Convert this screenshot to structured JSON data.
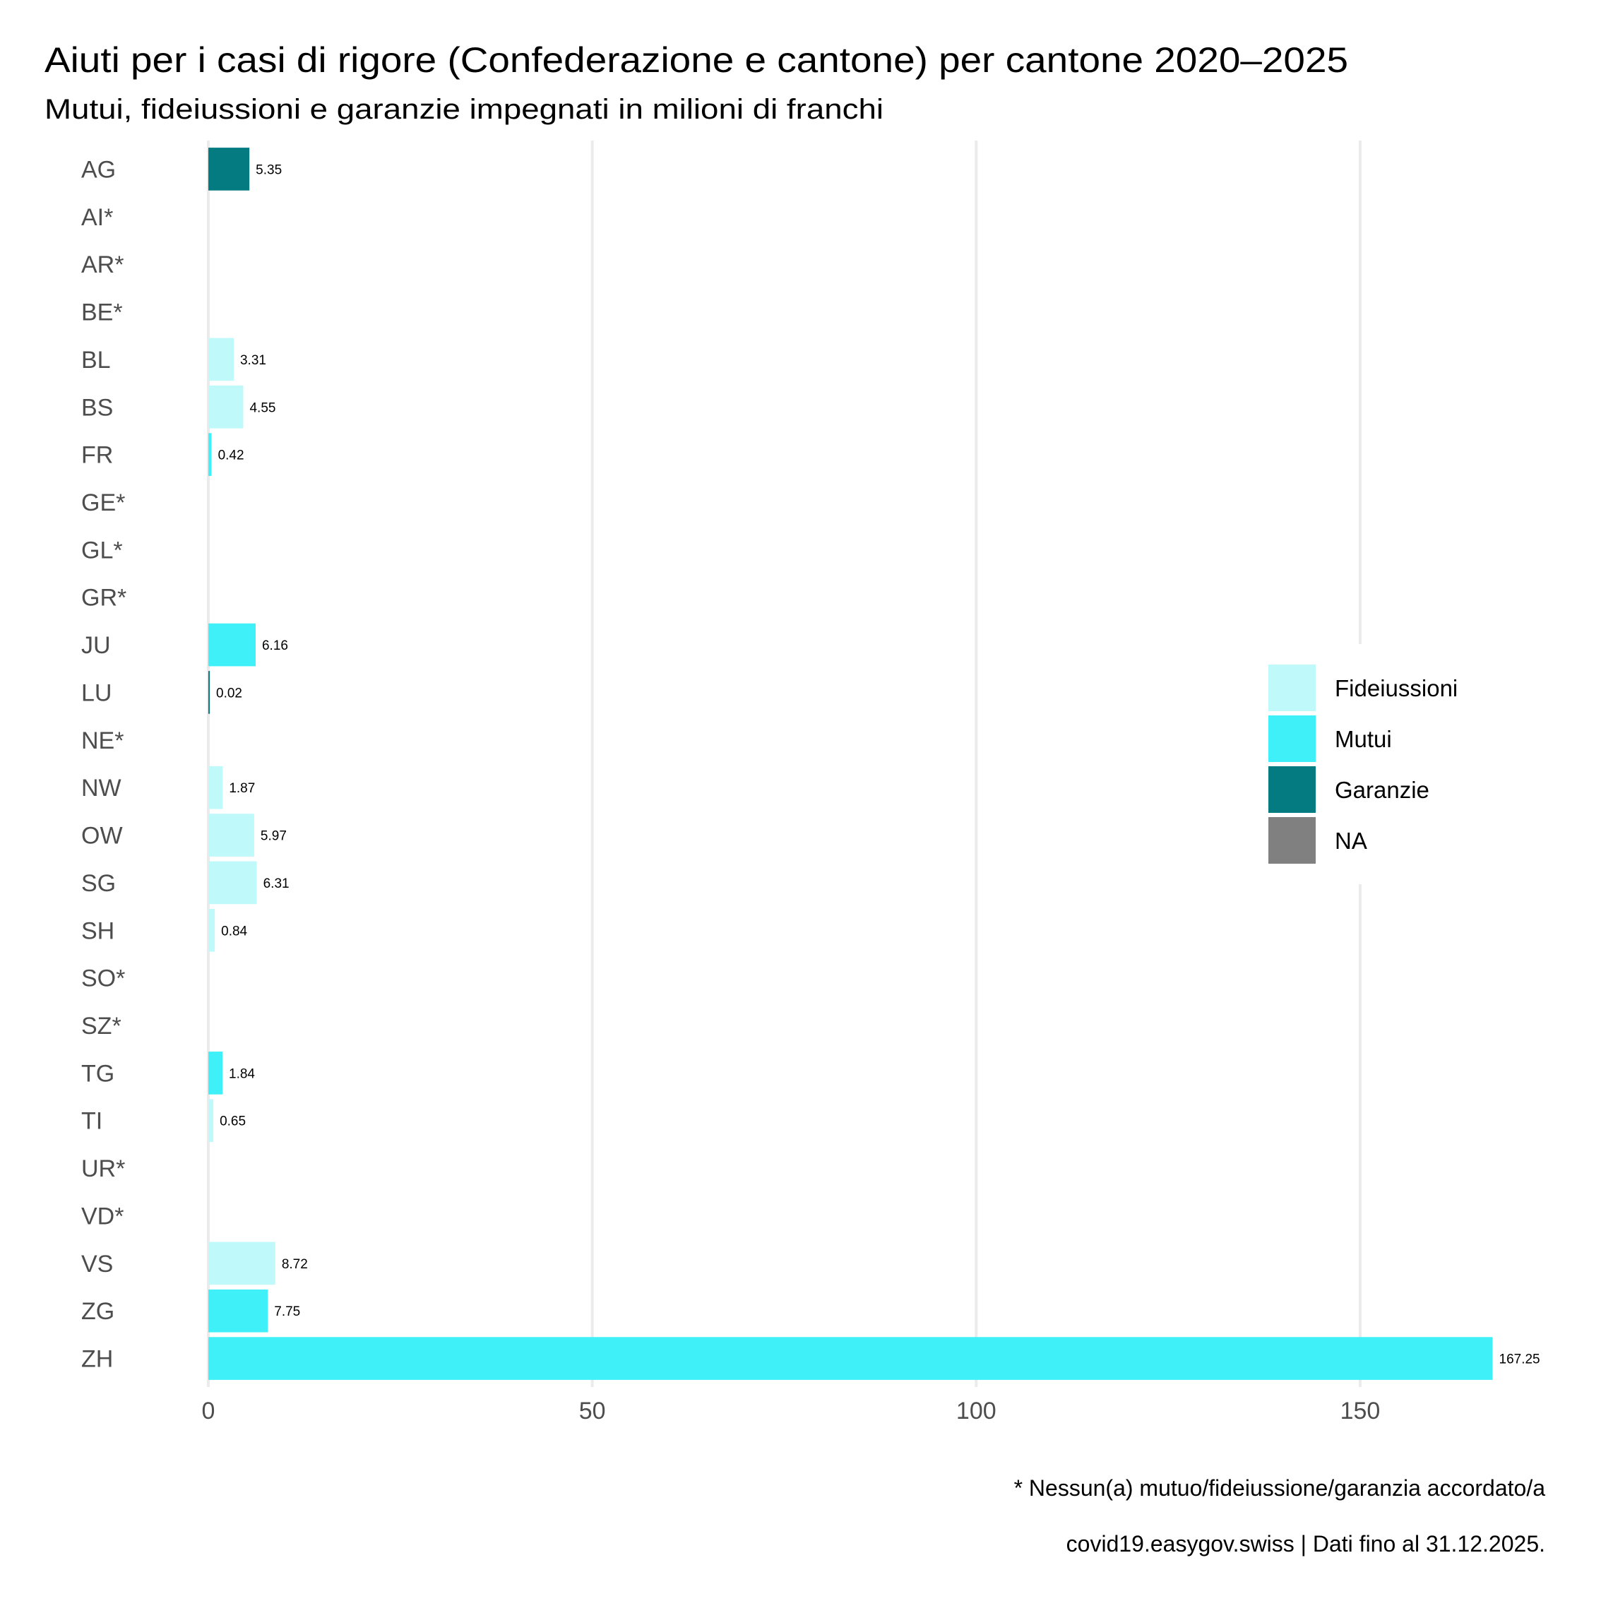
{
  "title": "Aiuti per i casi di rigore (Confederazione e cantone) per cantone 2020–2025",
  "subtitle": "Mutui, fideiussioni e garanzie impegnati in milioni di franchi",
  "caption": {
    "note": "* Nessun(a) mutuo/fideiussione/garanzia accordato/a",
    "source": "covid19.easygov.swiss | Dati fino al 31.12.2025."
  },
  "colors": {
    "Fideiussioni": "#BFF9FA",
    "Mutui": "#40F0F8",
    "Garanzie": "#037B80",
    "NA": "#808080"
  },
  "legend": {
    "items": [
      {
        "label": "Fideiussioni",
        "color": "#BFF9FA"
      },
      {
        "label": "Mutui",
        "color": "#40F0F8"
      },
      {
        "label": "Garanzie",
        "color": "#037B80"
      },
      {
        "label": "NA",
        "color": "#808080"
      }
    ],
    "position": "right"
  },
  "chart_data": {
    "type": "bar",
    "orientation": "horizontal",
    "title": "Aiuti per i casi di rigore (Confederazione e cantone) per cantone 2020–2025",
    "subtitle": "Mutui, fideiussioni e garanzie impegnati in milioni di franchi",
    "xlabel": "",
    "ylabel": "",
    "xlim": [
      0,
      170
    ],
    "xticks": [
      0,
      50,
      100,
      150
    ],
    "xtick_labels": [
      "0",
      "50",
      "100",
      "150"
    ],
    "grid": "vertical major",
    "categories": [
      "AG",
      "AI*",
      "AR*",
      "BE*",
      "BL",
      "BS",
      "FR",
      "GE*",
      "GL*",
      "GR*",
      "JU",
      "LU",
      "NE*",
      "NW",
      "OW",
      "SG",
      "SH",
      "SO*",
      "SZ*",
      "TG",
      "TI",
      "UR*",
      "VD*",
      "VS",
      "ZG",
      "ZH"
    ],
    "bars": [
      {
        "canton": "AG",
        "value": 5.35,
        "type": "Garanzie",
        "label": "5.35"
      },
      {
        "canton": "AI*",
        "value": null,
        "type": null,
        "label": null
      },
      {
        "canton": "AR*",
        "value": null,
        "type": null,
        "label": null
      },
      {
        "canton": "BE*",
        "value": null,
        "type": null,
        "label": null
      },
      {
        "canton": "BL",
        "value": 3.31,
        "type": "Fideiussioni",
        "label": "3.31"
      },
      {
        "canton": "BS",
        "value": 4.55,
        "type": "Fideiussioni",
        "label": "4.55"
      },
      {
        "canton": "FR",
        "value": 0.42,
        "type": "Mutui",
        "label": "0.42"
      },
      {
        "canton": "GE*",
        "value": null,
        "type": null,
        "label": null
      },
      {
        "canton": "GL*",
        "value": null,
        "type": null,
        "label": null
      },
      {
        "canton": "GR*",
        "value": null,
        "type": null,
        "label": null
      },
      {
        "canton": "JU",
        "value": 6.16,
        "type": "Mutui",
        "label": "6.16"
      },
      {
        "canton": "LU",
        "value": 0.02,
        "type": "Garanzie",
        "label": "0.02"
      },
      {
        "canton": "NE*",
        "value": null,
        "type": null,
        "label": null
      },
      {
        "canton": "NW",
        "value": 1.87,
        "type": "Fideiussioni",
        "label": "1.87"
      },
      {
        "canton": "OW",
        "value": 5.97,
        "type": "Fideiussioni",
        "label": "5.97"
      },
      {
        "canton": "SG",
        "value": 6.31,
        "type": "Fideiussioni",
        "label": "6.31"
      },
      {
        "canton": "SH",
        "value": 0.84,
        "type": "Fideiussioni",
        "label": "0.84"
      },
      {
        "canton": "SO*",
        "value": null,
        "type": null,
        "label": null
      },
      {
        "canton": "SZ*",
        "value": null,
        "type": null,
        "label": null
      },
      {
        "canton": "TG",
        "value": 1.84,
        "type": "Mutui",
        "label": "1.84"
      },
      {
        "canton": "TI",
        "value": 0.65,
        "type": "Fideiussioni",
        "label": "0.65"
      },
      {
        "canton": "UR*",
        "value": null,
        "type": null,
        "label": null
      },
      {
        "canton": "VD*",
        "value": null,
        "type": null,
        "label": null
      },
      {
        "canton": "VS",
        "value": 8.72,
        "type": "Fideiussioni",
        "label": "8.72"
      },
      {
        "canton": "ZG",
        "value": 7.75,
        "type": "Mutui",
        "label": "7.75"
      },
      {
        "canton": "ZH",
        "value": 167.25,
        "type": "Mutui",
        "label": "167.25"
      }
    ],
    "series": [
      {
        "name": "Fideiussioni",
        "values": {
          "BL": 3.31,
          "BS": 4.55,
          "NW": 1.87,
          "OW": 5.97,
          "SG": 6.31,
          "SH": 0.84,
          "TI": 0.65,
          "VS": 8.72
        }
      },
      {
        "name": "Mutui",
        "values": {
          "FR": 0.42,
          "JU": 6.16,
          "TG": 1.84,
          "ZG": 7.75,
          "ZH": 167.25
        }
      },
      {
        "name": "Garanzie",
        "values": {
          "AG": 5.35,
          "LU": 0.02
        }
      },
      {
        "name": "NA",
        "values": {}
      }
    ],
    "legend": [
      "Fideiussioni",
      "Mutui",
      "Garanzie",
      "NA"
    ],
    "legend_position": "right"
  }
}
